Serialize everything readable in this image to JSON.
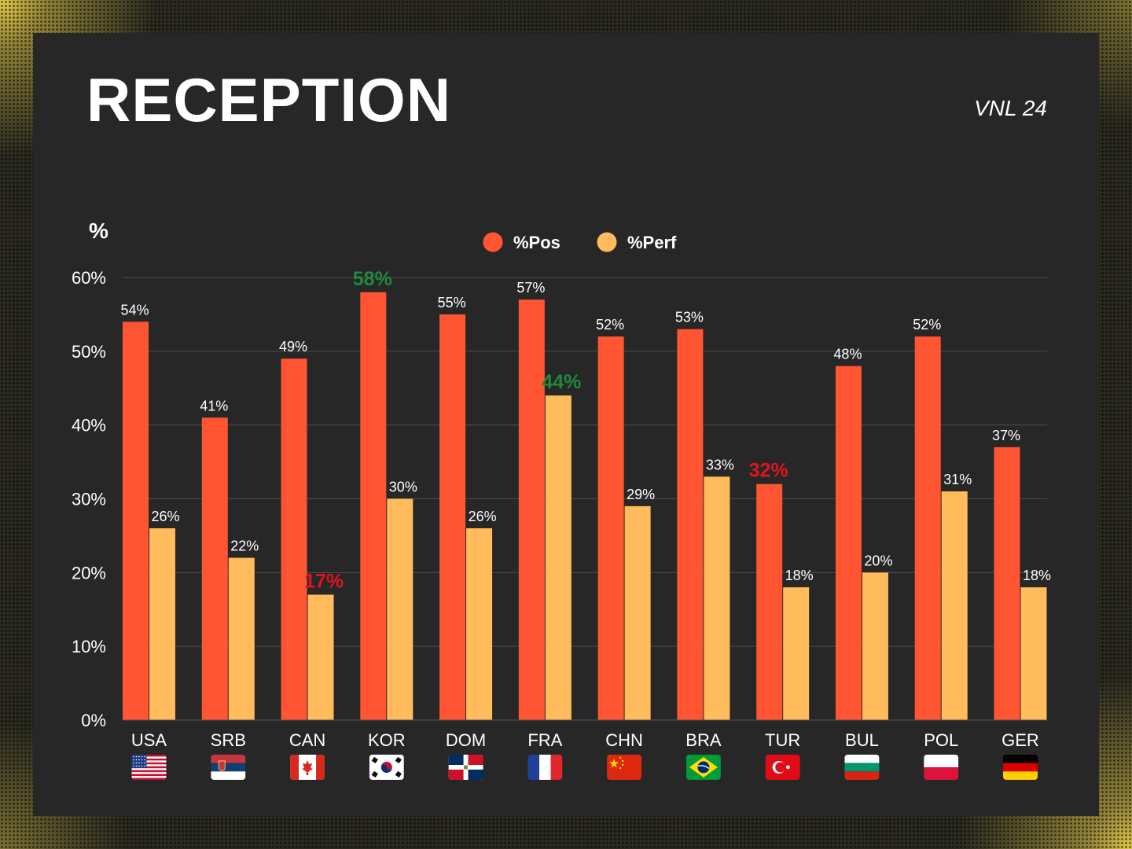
{
  "title": "RECEPTION",
  "subtitle": "VNL 24",
  "chart_data": {
    "type": "bar",
    "ylabel": "%",
    "ylim": [
      0,
      60
    ],
    "yticks": [
      "0%",
      "10%",
      "20%",
      "30%",
      "40%",
      "50%",
      "60%"
    ],
    "grid": true,
    "legend_position": "top-center",
    "categories": [
      "USA",
      "SRB",
      "CAN",
      "KOR",
      "DOM",
      "FRA",
      "CHN",
      "BRA",
      "TUR",
      "BUL",
      "POL",
      "GER"
    ],
    "series": [
      {
        "name": "%Pos",
        "color": "#ff5533",
        "values": [
          54,
          41,
          49,
          58,
          55,
          57,
          52,
          53,
          32,
          48,
          52,
          37
        ],
        "labels": [
          "54%",
          "41%",
          "49%",
          "58%",
          "55%",
          "57%",
          "52%",
          "53%",
          "32%",
          "48%",
          "52%",
          "37%"
        ]
      },
      {
        "name": "%Perf",
        "color": "#ffbb5c",
        "values": [
          26,
          22,
          17,
          30,
          26,
          44,
          29,
          33,
          18,
          20,
          31,
          18
        ],
        "labels": [
          "26%",
          "22%",
          "17%",
          "30%",
          "26%",
          "44%",
          "29%",
          "33%",
          "18%",
          "20%",
          "31%",
          "18%"
        ]
      }
    ],
    "highlights": {
      "max_color": "#1e8a3c",
      "min_color": "#e0141e",
      "max": [
        {
          "series": 0,
          "index": 3
        },
        {
          "series": 1,
          "index": 5
        }
      ],
      "min": [
        {
          "series": 0,
          "index": 8
        },
        {
          "series": 1,
          "index": 2
        }
      ]
    },
    "flags": [
      "us-flag-icon",
      "serbia-flag-icon",
      "canada-flag-icon",
      "korea-flag-icon",
      "dominican-flag-icon",
      "france-flag-icon",
      "china-flag-icon",
      "brazil-flag-icon",
      "turkey-flag-icon",
      "bulgaria-flag-icon",
      "poland-flag-icon",
      "germany-flag-icon"
    ]
  }
}
